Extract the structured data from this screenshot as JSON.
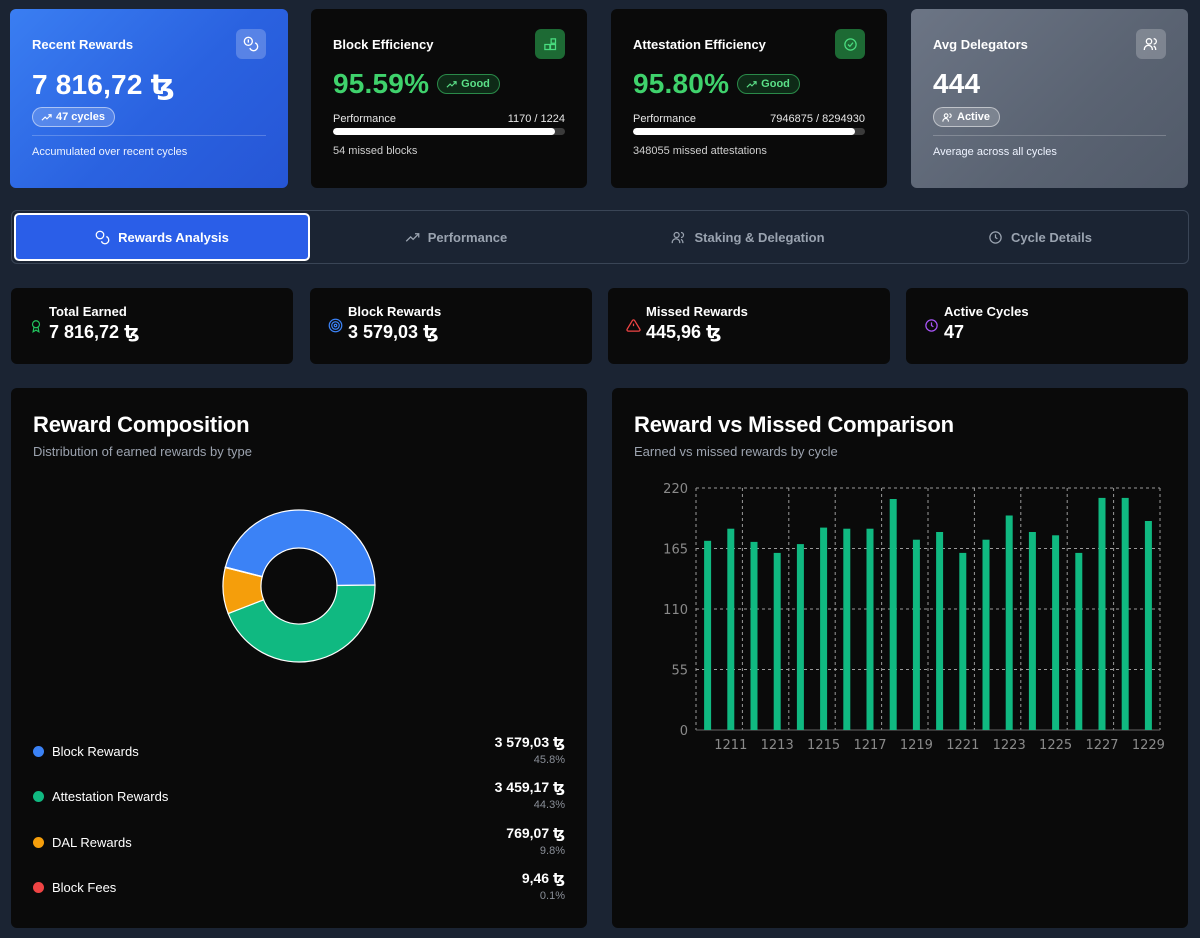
{
  "stats": {
    "recent_rewards": {
      "title": "Recent Rewards",
      "value": "7 816,72 ꜩ",
      "badge": "47 cycles",
      "foot": "Accumulated over recent cycles",
      "icon": "coins-icon"
    },
    "block_efficiency": {
      "title": "Block Efficiency",
      "value": "95.59%",
      "badge": "Good",
      "perf_label": "Performance",
      "perf_count": "1170 / 1224",
      "perf_fraction": 0.9559,
      "foot": "54 missed blocks",
      "icon": "blocks-icon"
    },
    "attestation_efficiency": {
      "title": "Attestation Efficiency",
      "value": "95.80%",
      "badge": "Good",
      "perf_label": "Performance",
      "perf_count": "7946875 / 8294930",
      "perf_fraction": 0.958,
      "foot": "348055 missed attestations",
      "icon": "check-circle-icon"
    },
    "avg_delegators": {
      "title": "Avg Delegators",
      "value": "444",
      "badge": "Active",
      "foot": "Average across all cycles",
      "icon": "users-icon"
    }
  },
  "tabs": [
    {
      "label": "Rewards Analysis",
      "icon": "coins-icon",
      "active": true
    },
    {
      "label": "Performance",
      "icon": "trending-up-icon",
      "active": false
    },
    {
      "label": "Staking & Delegation",
      "icon": "users-icon",
      "active": false
    },
    {
      "label": "Cycle Details",
      "icon": "clock-icon",
      "active": false
    }
  ],
  "mini_stats": [
    {
      "label": "Total Earned",
      "value": "7 816,72 ꜩ",
      "icon": "award-icon",
      "color": "#22c55e"
    },
    {
      "label": "Block Rewards",
      "value": "3 579,03 ꜩ",
      "icon": "target-icon",
      "color": "#3b82f6"
    },
    {
      "label": "Missed Rewards",
      "value": "445,96 ꜩ",
      "icon": "alert-triangle-icon",
      "color": "#ef4444"
    },
    {
      "label": "Active Cycles",
      "value": "47",
      "icon": "clock-icon",
      "color": "#a855f7"
    }
  ],
  "composition": {
    "title": "Reward Composition",
    "subtitle": "Distribution of earned rewards by type",
    "items": [
      {
        "label": "Block Rewards",
        "value": "3 579,03 ꜩ",
        "pct": "45.8%",
        "share": 45.8,
        "color": "#3b82f6"
      },
      {
        "label": "Attestation Rewards",
        "value": "3 459,17 ꜩ",
        "pct": "44.3%",
        "share": 44.3,
        "color": "#10b981"
      },
      {
        "label": "DAL Rewards",
        "value": "769,07 ꜩ",
        "pct": "9.8%",
        "share": 9.8,
        "color": "#f59e0b"
      },
      {
        "label": "Block Fees",
        "value": "9,46 ꜩ",
        "pct": "0.1%",
        "share": 0.1,
        "color": "#ef4444"
      }
    ]
  },
  "comparison": {
    "title": "Reward vs Missed Comparison",
    "subtitle": "Earned vs missed rewards by cycle"
  },
  "chart_data": {
    "type": "bar",
    "x": [
      1210,
      1211,
      1212,
      1213,
      1214,
      1215,
      1216,
      1217,
      1218,
      1219,
      1220,
      1221,
      1222,
      1223,
      1224,
      1225,
      1226,
      1227,
      1228,
      1229
    ],
    "x_tick_labels": [
      "1211",
      "1213",
      "1215",
      "1217",
      "1219",
      "1221",
      "1223",
      "1225",
      "1227",
      "1229"
    ],
    "series": [
      {
        "values": [
          172,
          183,
          171,
          161,
          169,
          184,
          183,
          183,
          210,
          173,
          180,
          161,
          173,
          195,
          180,
          177,
          161,
          211,
          211,
          190
        ],
        "color": "#10b981"
      }
    ],
    "ylim": [
      0,
      220
    ],
    "yticks": [
      "0",
      "55",
      "110",
      "165",
      "220"
    ],
    "grid": true
  }
}
